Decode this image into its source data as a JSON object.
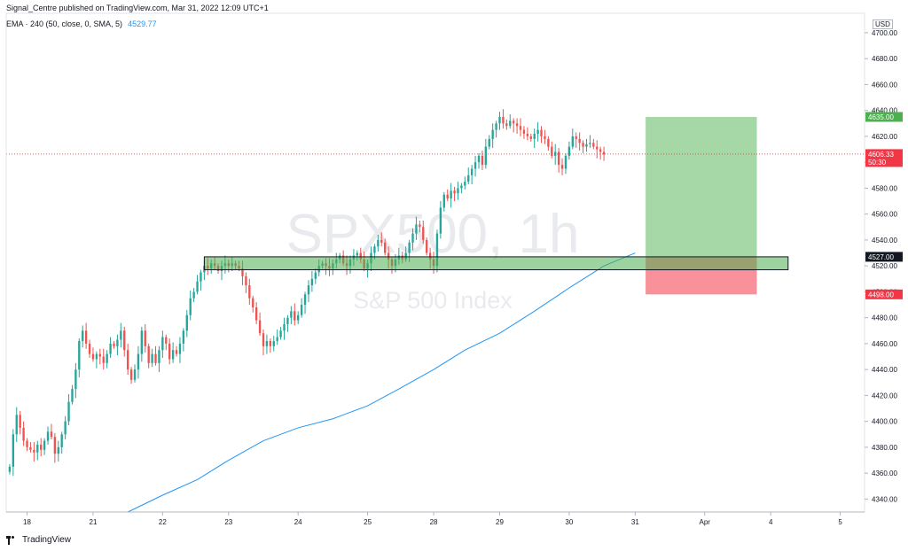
{
  "header": {
    "publisher": "Signal_Centre published on TradingView.com, Mar 31, 2022 12:09 UTC+1"
  },
  "indicator": {
    "label": "EMA · 240 (50, close, 0, SMA, 5)",
    "value": "4529.77",
    "color": "#2196f3"
  },
  "watermark": {
    "symbol": "SPX500, 1h",
    "name": "S&P 500 Index"
  },
  "footer": {
    "brand": "TradingView"
  },
  "axis": {
    "currency": "USD"
  },
  "price_labels": {
    "target": {
      "value": "4635.00",
      "color": "#4caf50"
    },
    "current": {
      "value": "4606.33",
      "countdown": "50:30",
      "color": "#f23645"
    },
    "entry": {
      "value": "4527.00",
      "color": "#131722"
    },
    "stop": {
      "value": "4498.00",
      "color": "#f23645"
    }
  },
  "colors": {
    "up": "#26a69a",
    "down": "#ef5350",
    "profit_zone": "#4caf50",
    "loss_zone": "#f23645",
    "zone": "#4caf50",
    "ema": "#2196f3"
  },
  "chart_data": {
    "type": "candlestick",
    "symbol": "SPX500",
    "interval": "1h",
    "y_ticks": [
      4340,
      4360,
      4380,
      4400,
      4420,
      4440,
      4460,
      4480,
      4500,
      4520,
      4540,
      4560,
      4580,
      4600,
      4620,
      4640,
      4660,
      4680,
      4700
    ],
    "ylim": [
      4330,
      4715
    ],
    "x_ticks": [
      "18",
      "21",
      "22",
      "23",
      "24",
      "25",
      "28",
      "29",
      "30",
      "31",
      "Apr",
      "4",
      "5"
    ],
    "x_tick_index": [
      6,
      25,
      45,
      64,
      84,
      104,
      123,
      142,
      162,
      181,
      201,
      220,
      240
    ],
    "xlim": [
      0,
      247
    ],
    "close_series": [
      4365,
      4390,
      4405,
      4395,
      4385,
      4380,
      4378,
      4376,
      4382,
      4378,
      4385,
      4392,
      4388,
      4375,
      4380,
      4390,
      4400,
      4415,
      4425,
      4440,
      4462,
      4470,
      4460,
      4452,
      4448,
      4452,
      4450,
      4445,
      4452,
      4460,
      4458,
      4463,
      4470,
      4455,
      4440,
      4432,
      4440,
      4452,
      4470,
      4458,
      4445,
      4452,
      4445,
      4455,
      4465,
      4460,
      4448,
      4455,
      4452,
      4460,
      4470,
      4482,
      4495,
      4500,
      4508,
      4515,
      4520,
      4518,
      4522,
      4520,
      4516,
      4520,
      4522,
      4520,
      4522,
      4520,
      4518,
      4512,
      4505,
      4495,
      4488,
      4478,
      4468,
      4458,
      4462,
      4458,
      4462,
      4465,
      4470,
      4475,
      4480,
      4485,
      4478,
      4482,
      4490,
      4498,
      4505,
      4510,
      4515,
      4520,
      4522,
      4520,
      4518,
      4522,
      4525,
      4528,
      4522,
      4520,
      4525,
      4528,
      4530,
      4525,
      4518,
      4522,
      4530,
      4535,
      4540,
      4538,
      4530,
      4525,
      4520,
      4525,
      4528,
      4525,
      4530,
      4538,
      4545,
      4552,
      4550,
      4540,
      4530,
      4525,
      4520,
      4545,
      4565,
      4575,
      4572,
      4578,
      4576,
      4580,
      4582,
      4585,
      4590,
      4595,
      4600,
      4605,
      4598,
      4612,
      4618,
      4625,
      4630,
      4635,
      4630,
      4628,
      4632,
      4630,
      4628,
      4625,
      4622,
      4620,
      4618,
      4622,
      4625,
      4620,
      4618,
      4612,
      4605,
      4608,
      4598,
      4595,
      4605,
      4612,
      4620,
      4618,
      4615,
      4612,
      4614,
      4615,
      4612,
      4610,
      4608,
      4606
    ],
    "ema_series": [
      {
        "x": 35,
        "y": 4330
      },
      {
        "x": 45,
        "y": 4343
      },
      {
        "x": 55,
        "y": 4355
      },
      {
        "x": 64,
        "y": 4370
      },
      {
        "x": 74,
        "y": 4385
      },
      {
        "x": 84,
        "y": 4395
      },
      {
        "x": 94,
        "y": 4402
      },
      {
        "x": 104,
        "y": 4412
      },
      {
        "x": 113,
        "y": 4425
      },
      {
        "x": 123,
        "y": 4440
      },
      {
        "x": 132,
        "y": 4455
      },
      {
        "x": 142,
        "y": 4468
      },
      {
        "x": 152,
        "y": 4485
      },
      {
        "x": 162,
        "y": 4503
      },
      {
        "x": 172,
        "y": 4520
      },
      {
        "x": 181,
        "y": 4530
      }
    ],
    "support_zone": {
      "x_start": 57,
      "x_end": 225,
      "y_low": 4517,
      "y_high": 4527
    },
    "position": {
      "x_start": 184,
      "x_end": 216,
      "entry": 4527,
      "target": 4635,
      "stop": 4498
    },
    "current_price_line": 4606.33
  }
}
